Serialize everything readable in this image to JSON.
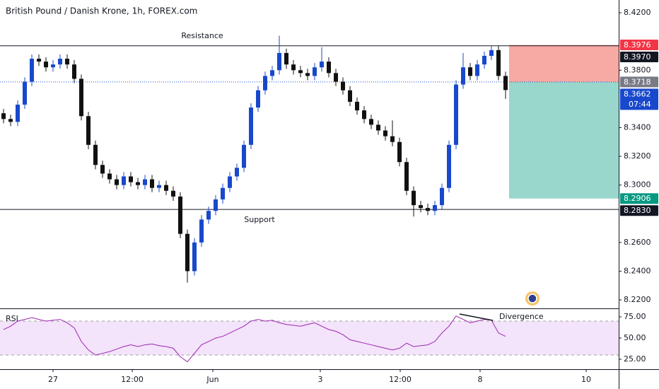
{
  "chart_data": {
    "type": "candlestick",
    "title": "British Pound / Danish Krone, 1h, FOREX.com",
    "annotations": {
      "resistance": "Resistance",
      "support": "Support",
      "divergence": "Divergence"
    },
    "up_color": "#1848cc",
    "down_color": "#111111",
    "open": [
      8.35,
      8.346,
      8.344,
      8.356,
      8.372,
      8.388,
      8.386,
      8.382,
      8.384,
      8.388,
      8.384,
      8.374,
      8.348,
      8.328,
      8.314,
      8.308,
      8.304,
      8.3,
      8.306,
      8.302,
      8.3,
      8.304,
      8.298,
      8.3,
      8.296,
      8.292,
      8.266,
      8.24,
      8.26,
      8.276,
      8.282,
      8.29,
      8.298,
      8.306,
      8.312,
      8.328,
      8.354,
      8.366,
      8.376,
      8.38,
      8.392,
      8.384,
      8.38,
      8.378,
      8.376,
      8.382,
      8.386,
      8.378,
      8.372,
      8.366,
      8.358,
      8.352,
      8.346,
      8.342,
      8.338,
      8.334,
      8.33,
      8.316,
      8.296,
      8.286,
      8.284,
      8.282,
      8.286,
      8.298,
      8.328,
      8.37,
      8.382,
      8.376,
      8.384,
      8.39,
      8.394,
      8.376
    ],
    "high": [
      8.353,
      8.349,
      8.359,
      8.375,
      8.391,
      8.391,
      8.389,
      8.387,
      8.391,
      8.391,
      8.387,
      8.377,
      8.351,
      8.331,
      8.317,
      8.311,
      8.307,
      8.309,
      8.309,
      8.305,
      8.307,
      8.307,
      8.303,
      8.303,
      8.299,
      8.295,
      8.269,
      8.263,
      8.279,
      8.285,
      8.293,
      8.301,
      8.309,
      8.315,
      8.331,
      8.357,
      8.369,
      8.379,
      8.383,
      8.404,
      8.395,
      8.387,
      8.383,
      8.381,
      8.385,
      8.396,
      8.389,
      8.381,
      8.375,
      8.369,
      8.361,
      8.355,
      8.349,
      8.345,
      8.341,
      8.345,
      8.333,
      8.319,
      8.299,
      8.289,
      8.287,
      8.289,
      8.301,
      8.331,
      8.373,
      8.392,
      8.385,
      8.387,
      8.393,
      8.397,
      8.397,
      8.379
    ],
    "low": [
      8.343,
      8.341,
      8.341,
      8.353,
      8.369,
      8.383,
      8.379,
      8.379,
      8.381,
      8.381,
      8.371,
      8.345,
      8.325,
      8.311,
      8.305,
      8.301,
      8.297,
      8.297,
      8.299,
      8.297,
      8.297,
      8.295,
      8.295,
      8.293,
      8.289,
      8.263,
      8.232,
      8.237,
      8.257,
      8.273,
      8.279,
      8.287,
      8.295,
      8.303,
      8.309,
      8.325,
      8.351,
      8.363,
      8.373,
      8.377,
      8.381,
      8.377,
      8.375,
      8.373,
      8.373,
      8.379,
      8.375,
      8.369,
      8.363,
      8.355,
      8.349,
      8.343,
      8.339,
      8.335,
      8.331,
      8.327,
      8.313,
      8.293,
      8.278,
      8.281,
      8.279,
      8.279,
      8.283,
      8.295,
      8.325,
      8.367,
      8.373,
      8.373,
      8.381,
      8.387,
      8.373,
      8.36
    ],
    "close": [
      8.346,
      8.344,
      8.356,
      8.372,
      8.388,
      8.386,
      8.382,
      8.384,
      8.388,
      8.384,
      8.374,
      8.348,
      8.328,
      8.314,
      8.308,
      8.304,
      8.3,
      8.306,
      8.302,
      8.3,
      8.304,
      8.298,
      8.3,
      8.296,
      8.292,
      8.266,
      8.24,
      8.26,
      8.276,
      8.282,
      8.29,
      8.298,
      8.306,
      8.312,
      8.328,
      8.354,
      8.366,
      8.376,
      8.38,
      8.392,
      8.384,
      8.38,
      8.378,
      8.376,
      8.382,
      8.386,
      8.378,
      8.372,
      8.366,
      8.358,
      8.352,
      8.346,
      8.342,
      8.338,
      8.334,
      8.33,
      8.316,
      8.296,
      8.286,
      8.284,
      8.282,
      8.286,
      8.298,
      8.328,
      8.37,
      8.382,
      8.376,
      8.384,
      8.39,
      8.394,
      8.376,
      8.3662
    ],
    "xlim": [
      -0.5,
      87
    ],
    "xticks": [
      {
        "value": 7,
        "label": "27"
      },
      {
        "value": 18.2,
        "label": "12:00"
      },
      {
        "value": 29.6,
        "label": "Jun"
      },
      {
        "value": 44.8,
        "label": "3"
      },
      {
        "value": 56.1,
        "label": "12:00"
      },
      {
        "value": 67.4,
        "label": "8"
      },
      {
        "value": 82.4,
        "label": "10"
      }
    ],
    "ylim": [
      8.2141,
      8.4289
    ],
    "yticks": [
      {
        "value": 8.42,
        "label": "8.4200"
      },
      {
        "value": 8.38,
        "label": "8.3800"
      },
      {
        "value": 8.34,
        "label": "8.3400"
      },
      {
        "value": 8.32,
        "label": "8.3200"
      },
      {
        "value": 8.3,
        "label": "8.3000"
      },
      {
        "value": 8.26,
        "label": "8.2600"
      },
      {
        "value": 8.24,
        "label": "8.2400"
      },
      {
        "value": 8.22,
        "label": "8.2200"
      }
    ],
    "resistance_line": 8.397,
    "support_line": 8.283,
    "last_price_line": 8.3718,
    "position": {
      "x_start": 71.5,
      "stop": 8.3976,
      "entry": 8.3718,
      "target": 8.2906,
      "stop_color": "#f7a9a3",
      "target_color": "#99d6cc"
    },
    "price_labels": [
      {
        "value": 8.3976,
        "label": "8.3976",
        "color": "#f23645"
      },
      {
        "value": 8.397,
        "label": "8.3970",
        "color": "#131722"
      },
      {
        "value": 8.3718,
        "label": "8.3718",
        "color": "#787b86"
      },
      {
        "value": 8.3662,
        "label": "8.3662",
        "color": "#1848cc",
        "countdown": "07:44"
      },
      {
        "value": 8.2906,
        "label": "8.2906",
        "color": "#089981"
      },
      {
        "value": 8.283,
        "label": "8.2830",
        "color": "#131722"
      }
    ],
    "rsi": {
      "label": "RSI",
      "color": "#9c27b0",
      "band_color": "#f3e3fb",
      "band": [
        30,
        70
      ],
      "values": [
        60,
        64,
        70,
        72,
        74,
        72,
        70,
        71,
        72,
        68,
        62,
        46,
        36,
        30,
        32,
        34,
        37,
        40,
        42,
        40,
        42,
        43,
        41,
        40,
        38,
        28,
        22,
        32,
        42,
        46,
        50,
        52,
        56,
        60,
        64,
        70,
        72,
        70,
        71,
        68,
        66,
        65,
        64,
        66,
        68,
        64,
        60,
        58,
        54,
        48,
        46,
        44,
        42,
        40,
        38,
        36,
        38,
        44,
        40,
        41,
        42,
        46,
        56,
        64,
        76,
        72,
        68,
        70,
        72,
        71,
        56,
        52
      ],
      "ylim": [
        13.3,
        85
      ],
      "yticks": [
        {
          "value": 75,
          "label": "75.00"
        },
        {
          "value": 50,
          "label": "50.00"
        },
        {
          "value": 25,
          "label": "25.00"
        }
      ]
    }
  }
}
